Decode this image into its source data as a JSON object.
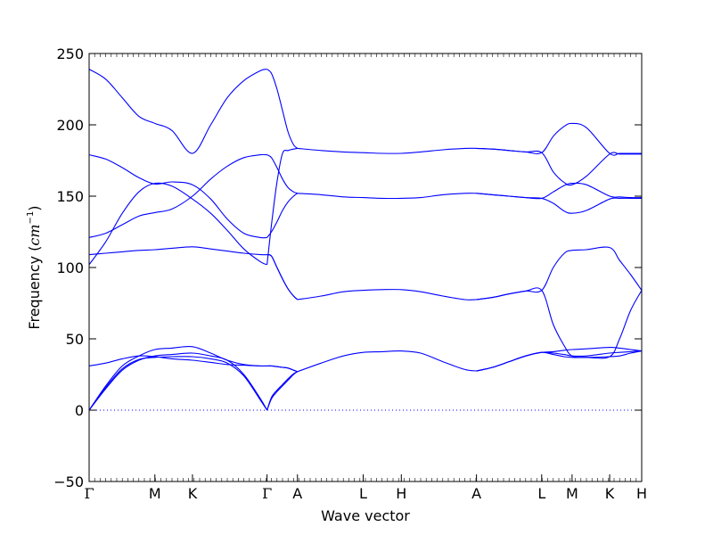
{
  "chart_data": {
    "type": "line",
    "title": "",
    "xlabel": "Wave vector",
    "ylabel_main": "Frequency (",
    "ylabel_unit": "cm",
    "ylabel_exp": "−1",
    "ylabel_close": ")",
    "ylim": [
      -50,
      250
    ],
    "yticks": [
      -50,
      0,
      50,
      100,
      150,
      200,
      250
    ],
    "xlim": [
      0,
      1
    ],
    "zero_line": 0,
    "grid": false,
    "legend": "none",
    "line_color": "#0000ff",
    "zero_line_color": "#0000ff",
    "high_symmetry_points": [
      {
        "label": "Γ",
        "x": 0.0
      },
      {
        "label": "M",
        "x": 0.119
      },
      {
        "label": "K",
        "x": 0.187
      },
      {
        "label": "Γ",
        "x": 0.322
      },
      {
        "label": "A",
        "x": 0.377
      },
      {
        "label": "L",
        "x": 0.496
      },
      {
        "label": "H",
        "x": 0.565
      },
      {
        "label": "A",
        "x": 0.701
      },
      {
        "label": "L",
        "x": 0.819
      },
      {
        "label": "M",
        "x": 0.874
      },
      {
        "label": "K",
        "x": 0.942
      },
      {
        "label": "H",
        "x": 1.0
      }
    ],
    "segments": [
      {
        "name": "Γ-M-K-Γ",
        "x": [
          0,
          0.03,
          0.06,
          0.09,
          0.119,
          0.15,
          0.187,
          0.22,
          0.25,
          0.28,
          0.31,
          0.322
        ],
        "bands": [
          [
            0,
            15,
            28,
            35,
            38,
            39,
            40,
            38,
            35,
            25,
            8,
            0
          ],
          [
            0,
            16,
            29,
            35.5,
            37,
            37.5,
            37.5,
            36,
            33,
            24,
            7,
            0
          ],
          [
            0,
            17,
            31,
            38,
            42.5,
            43.5,
            44.5,
            40,
            35,
            32,
            31,
            31
          ],
          [
            31,
            33,
            36,
            38,
            37.5,
            36,
            35,
            33.5,
            32,
            31.5,
            31,
            31
          ],
          [
            109,
            110,
            111,
            112,
            112.5,
            113.5,
            114.5,
            113,
            111.5,
            110,
            109,
            109
          ],
          [
            102,
            118,
            138,
            153,
            159,
            157,
            148,
            138,
            126,
            113,
            104,
            102
          ],
          [
            121,
            124,
            130,
            136,
            138.5,
            141,
            150,
            162,
            171,
            177,
            179,
            179
          ],
          [
            179,
            176,
            170,
            163,
            158.5,
            160,
            158,
            148,
            134,
            124,
            121,
            121
          ],
          [
            239,
            232,
            219,
            206,
            201,
            196,
            180,
            200,
            219,
            231,
            238,
            239
          ]
        ]
      },
      {
        "name": "Γ-A",
        "x": [
          0.322,
          0.33,
          0.34,
          0.35,
          0.36,
          0.37,
          0.377
        ],
        "bands": [
          [
            0,
            9,
            14,
            18,
            22,
            25.5,
            27
          ],
          [
            0,
            8,
            13,
            17,
            21,
            25,
            27
          ],
          [
            31,
            31,
            30.5,
            30,
            29.5,
            28,
            27
          ],
          [
            31,
            31,
            30.5,
            30,
            29.5,
            28,
            27
          ],
          [
            102,
            130,
            160,
            180,
            182,
            183,
            183.5
          ],
          [
            109,
            108,
            100,
            92,
            85,
            80,
            77.5
          ],
          [
            109,
            108,
            100,
            92,
            85,
            80,
            77.5
          ],
          [
            121,
            125,
            132,
            140,
            146,
            150,
            152
          ],
          [
            179,
            177,
            170,
            162,
            156,
            153,
            152
          ],
          [
            239,
            236,
            225,
            210,
            195,
            186,
            183.5
          ]
        ]
      },
      {
        "name": "A-L-H-A",
        "x": [
          0.377,
          0.42,
          0.46,
          0.496,
          0.53,
          0.565,
          0.6,
          0.64,
          0.68,
          0.701
        ],
        "bands": [
          [
            27,
            33,
            38,
            40.5,
            41,
            41.5,
            40,
            34,
            28.5,
            27.5
          ],
          [
            77.5,
            80,
            83,
            84,
            84.5,
            84.5,
            83,
            80,
            77.5,
            77.5
          ],
          [
            152,
            151,
            149.5,
            149,
            148.5,
            148.5,
            149,
            151,
            152,
            152
          ],
          [
            183.5,
            182,
            181,
            180.5,
            180,
            180,
            181,
            182.5,
            183.5,
            183.5
          ]
        ]
      },
      {
        "name": "A-L-M-K-H",
        "x": [
          0.701,
          0.73,
          0.76,
          0.79,
          0.819,
          0.84,
          0.86,
          0.874,
          0.9,
          0.942,
          0.96,
          0.98,
          1.0
        ],
        "bands": [
          [
            27.5,
            30,
            34,
            38,
            40.5,
            41,
            42,
            42.5,
            43,
            44,
            43.5,
            42.5,
            41.5
          ],
          [
            27.5,
            30,
            34,
            38,
            40.5,
            40,
            39,
            38,
            38,
            40,
            40.5,
            41,
            41.5
          ],
          [
            27.5,
            30,
            34,
            38,
            40.5,
            39,
            37.5,
            37,
            37,
            37.5,
            38,
            40,
            41.5
          ],
          [
            77.5,
            79,
            81.5,
            83.5,
            84,
            60,
            45,
            38,
            37,
            37.5,
            50,
            70,
            84
          ],
          [
            77.5,
            79,
            81.5,
            83.5,
            84,
            100,
            110,
            112,
            112.5,
            114,
            105,
            95,
            84
          ],
          [
            152,
            151,
            150,
            149,
            148.5,
            145,
            139.5,
            138,
            140,
            148,
            148.5,
            148.5,
            148.5
          ],
          [
            152,
            151,
            150,
            149,
            148.5,
            153,
            157.5,
            159,
            158,
            150,
            149.5,
            149,
            149
          ],
          [
            183.5,
            183,
            182,
            181,
            180.5,
            167,
            159.5,
            158,
            164,
            179.5,
            179.5,
            179.5,
            179.5
          ],
          [
            183.5,
            183,
            182,
            181,
            180.5,
            192,
            199,
            201,
            198,
            180,
            180,
            180,
            180
          ]
        ]
      }
    ]
  }
}
